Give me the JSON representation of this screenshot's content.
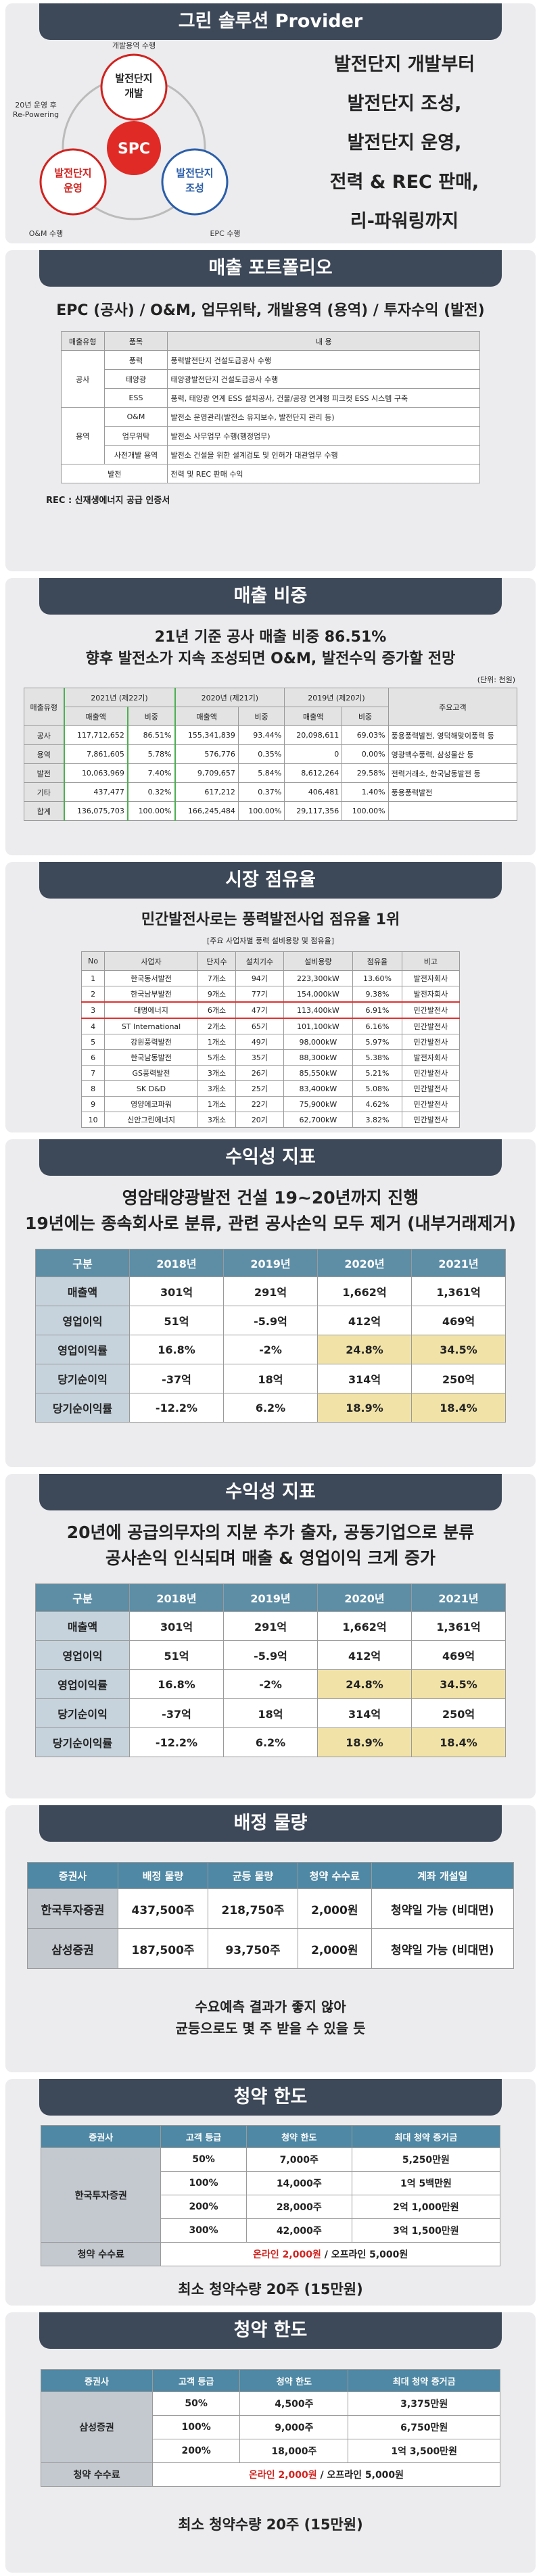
{
  "provider": {
    "title": "그린 솔루션 Provider",
    "center": "SPC",
    "nodes": [
      [
        "발전단지",
        "개발"
      ],
      [
        "발전단지",
        "조성"
      ],
      [
        "발전단지",
        "운영"
      ]
    ],
    "arrow_labels": [
      [
        "개발용역 수행"
      ],
      [
        "20년 운영 후",
        "Re-Powering"
      ],
      [
        "O&M 수행"
      ],
      [
        "EPC 수행"
      ]
    ],
    "lines": [
      "발전단지 개발부터",
      "발전단지 조성,",
      "발전단지 운영,",
      "전력 & REC 판매,",
      "리-파워링까지"
    ]
  },
  "portfolio": {
    "title": "매출 포트폴리오",
    "subtitle": "EPC (공사) / O&M, 업무위탁, 개발용역 (용역) / 투자수익 (발전)",
    "header": [
      "매출유형",
      "품목",
      "내 용"
    ],
    "groups": [
      {
        "type": "공사",
        "items": [
          [
            "풍력",
            "풍력발전단지 건설도급공사 수행"
          ],
          [
            "태양광",
            "태양광발전단지 건설도급공사 수행"
          ],
          [
            "ESS",
            "풍력, 태양광 연계 ESS 설치공사, 건물/공장 연계형 피크컷 ESS 시스템 구축"
          ]
        ]
      },
      {
        "type": "용역",
        "items": [
          [
            "O&M",
            "발전소 운영관리(발전소 유지보수, 발전단지 관리 등)"
          ],
          [
            "업무위탁",
            "발전소 사무업무 수행(행정업무)"
          ],
          [
            "사전개발 용역",
            "발전소 건설을 위한 설계검토 및 인허가 대관업무 수행"
          ]
        ]
      },
      {
        "type": "발전",
        "items": [
          [
            "전력 및 REC 판매 수익"
          ]
        ]
      }
    ],
    "note": "REC : 신재생에너지 공급 인증서"
  },
  "sales_mix": {
    "title": "매출 비중",
    "lines": [
      "21년 기준 공사 매출 비중 86.51%",
      "향후 발전소가 지속 조성되면 O&M, 발전수익 증가할 전망"
    ],
    "unit": "(단위: 천원)",
    "type_head": "매출유형",
    "years": [
      "2021년 (제22기)",
      "2020년 (제21기)",
      "2019년 (제20기)"
    ],
    "subheads": [
      "매출액",
      "비중"
    ],
    "customer_head": "주요고객",
    "rows": [
      [
        "공사",
        "117,712,652",
        "86.51%",
        "155,341,839",
        "93.44%",
        "20,098,611",
        "69.03%",
        "풍용풍력발전, 영덕해맞이풍력 등"
      ],
      [
        "용역",
        "7,861,605",
        "5.78%",
        "576,776",
        "0.35%",
        "0",
        "0.00%",
        "영광백수풍력, 삼성물산 등"
      ],
      [
        "발전",
        "10,063,969",
        "7.40%",
        "9,709,657",
        "5.84%",
        "8,612,264",
        "29.58%",
        "전력거래소, 한국남동발전 등"
      ],
      [
        "기타",
        "437,477",
        "0.32%",
        "617,212",
        "0.37%",
        "406,481",
        "1.40%",
        "풍용풍력발전"
      ],
      [
        "합계",
        "136,075,703",
        "100.00%",
        "166,245,484",
        "100.00%",
        "29,117,356",
        "100.00%"
      ]
    ]
  },
  "market_share": {
    "title": "시장 점유율",
    "subtitle": "민간발전사로는 풍력발전사업 점유율 1위",
    "caption": "[주요 사업자별 풍력 설비용량 및 점유율]",
    "header": [
      "No",
      "사업자",
      "단지수",
      "설치기수",
      "설비용량",
      "점유율",
      "비고"
    ],
    "highlight_row": 2,
    "rows": [
      [
        "1",
        "한국동서발전",
        "7개소",
        "94기",
        "223,300kW",
        "13.60%",
        "발전자회사"
      ],
      [
        "2",
        "한국남부발전",
        "9개소",
        "77기",
        "154,000kW",
        "9.38%",
        "발전자회사"
      ],
      [
        "3",
        "대명에너지",
        "6개소",
        "47기",
        "113,400kW",
        "6.91%",
        "민간발전사"
      ],
      [
        "4",
        "ST International",
        "2개소",
        "65기",
        "101,100kW",
        "6.16%",
        "민간발전사"
      ],
      [
        "5",
        "강원풍력발전",
        "1개소",
        "49기",
        "98,000kW",
        "5.97%",
        "민간발전사"
      ],
      [
        "6",
        "한국남동발전",
        "5개소",
        "35기",
        "88,300kW",
        "5.38%",
        "발전자회사"
      ],
      [
        "7",
        "GS풍력발전",
        "3개소",
        "26기",
        "85,550kW",
        "5.21%",
        "민간발전사"
      ],
      [
        "8",
        "SK D&D",
        "3개소",
        "25기",
        "83,400kW",
        "5.08%",
        "민간발전사"
      ],
      [
        "9",
        "영양에코파워",
        "1개소",
        "22기",
        "75,900kW",
        "4.62%",
        "민간발전사"
      ],
      [
        "10",
        "신안그린에너지",
        "3개소",
        "20기",
        "62,700kW",
        "3.82%",
        "민간발전사"
      ]
    ]
  },
  "profit": [
    {
      "title": "수익성 지표",
      "lines": [
        "영암태양광발전 건설 19~20년까지 진행",
        "19년에는 종속회사로 분류, 관련 공사손익 모두 제거 (내부거래제거)"
      ],
      "header": [
        "구분",
        "2018년",
        "2019년",
        "2020년",
        "2021년"
      ],
      "rows": [
        [
          "매출액",
          "301억",
          "291억",
          "1,662억",
          "1,361억"
        ],
        [
          "영업이익",
          "51억",
          "-5.9억",
          "412억",
          "469억"
        ],
        [
          "영업이익률",
          "16.8%",
          "-2%",
          "24.8%",
          "34.5%"
        ],
        [
          "당기순이익",
          "-37억",
          "18억",
          "314억",
          "250억"
        ],
        [
          "당기순이익률",
          "-12.2%",
          "6.2%",
          "18.9%",
          "18.4%"
        ]
      ]
    },
    {
      "title": "수익성 지표",
      "lines": [
        "20년에 공급의무자의 지분 추가 출자, 공동기업으로 분류",
        "공사손익 인식되며 매출 & 영업이익 크게 증가"
      ],
      "header": [
        "구분",
        "2018년",
        "2019년",
        "2020년",
        "2021년"
      ],
      "rows": [
        [
          "매출액",
          "301억",
          "291억",
          "1,662억",
          "1,361억"
        ],
        [
          "영업이익",
          "51억",
          "-5.9억",
          "412억",
          "469억"
        ],
        [
          "영업이익률",
          "16.8%",
          "-2%",
          "24.8%",
          "34.5%"
        ],
        [
          "당기순이익",
          "-37억",
          "18억",
          "314억",
          "250억"
        ],
        [
          "당기순이익률",
          "-12.2%",
          "6.2%",
          "18.9%",
          "18.4%"
        ]
      ]
    }
  ],
  "allocation": {
    "title": "배정 물량",
    "header": [
      "증권사",
      "배정 물량",
      "균등 물량",
      "청약 수수료",
      "계좌 개설일"
    ],
    "rows": [
      [
        "한국투자증권",
        "437,500주",
        "218,750주",
        "2,000원",
        "청약일 가능 (비대면)"
      ],
      [
        "삼성증권",
        "187,500주",
        "93,750주",
        "2,000원",
        "청약일 가능 (비대면)"
      ]
    ],
    "lines": [
      "수요예측 결과가 좋지 않아",
      "균등으로도 몇 주 받을 수 있을 듯"
    ]
  },
  "limits": [
    {
      "title": "청약 한도",
      "header": [
        "증권사",
        "고객 등급",
        "청약 한도",
        "최대 청약 증거금"
      ],
      "broker": "한국투자증권",
      "rows": [
        [
          "50%",
          "7,000주",
          "5,250만원"
        ],
        [
          "100%",
          "14,000주",
          "1억 5백만원"
        ],
        [
          "200%",
          "28,000주",
          "2억 1,000만원"
        ],
        [
          "300%",
          "42,000주",
          "3억 1,500만원"
        ]
      ],
      "fee_label": "청약 수수료",
      "fee": [
        "온라인 2,000원",
        " / 오프라인 5,000원"
      ],
      "footer": "최소 청약수량 20주 (15만원)"
    },
    {
      "title": "청약 한도",
      "header": [
        "증권사",
        "고객 등급",
        "청약 한도",
        "최대 청약 증거금"
      ],
      "broker": "삼성증권",
      "rows": [
        [
          "50%",
          "4,500주",
          "3,375만원"
        ],
        [
          "100%",
          "9,000주",
          "6,750만원"
        ],
        [
          "200%",
          "18,000주",
          "1억 3,500만원"
        ]
      ],
      "fee_label": "청약 수수료",
      "fee": [
        "온라인 2,000원",
        " / 오프라인 5,000원"
      ],
      "footer": "최소 청약수량 20주 (15만원)"
    }
  ]
}
